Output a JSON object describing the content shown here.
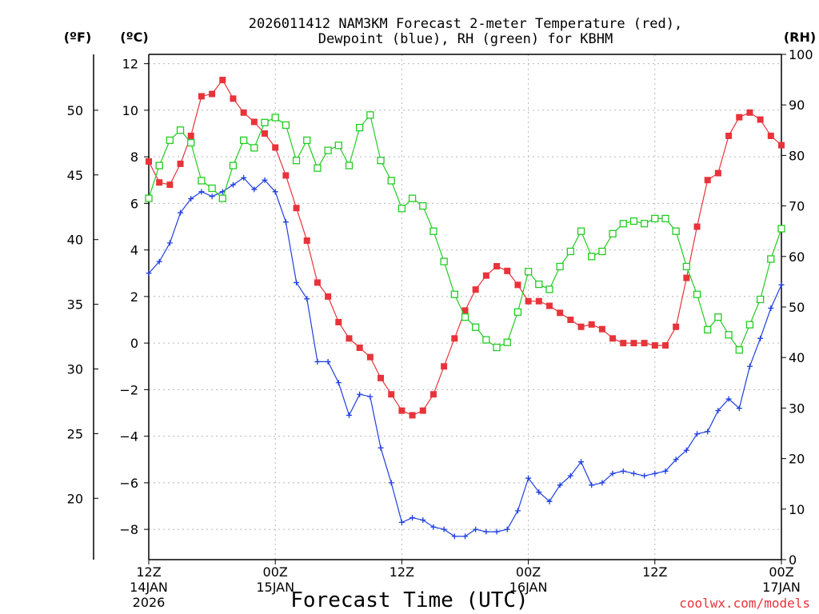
{
  "chart_data": {
    "type": "line",
    "title_lines": [
      "2026011412 NAM3KM Forecast 2-meter Temperature (red),",
      "Dewpoint (blue), RH (green) for KBHM"
    ],
    "xlabel": "Forecast Time (UTC)",
    "credit": "coolwx.com/models",
    "units": {
      "fahrenheit": "(ºF)",
      "celsius": "(ºC)",
      "rh": "(RH)"
    },
    "x_range_hours": [
      0,
      60
    ],
    "x_ticks": [
      {
        "hour": 0,
        "lines": [
          "12Z",
          "14JAN",
          "2026"
        ]
      },
      {
        "hour": 12,
        "lines": [
          "00Z",
          "15JAN"
        ]
      },
      {
        "hour": 24,
        "lines": [
          "12Z"
        ]
      },
      {
        "hour": 36,
        "lines": [
          "00Z",
          "16JAN"
        ]
      },
      {
        "hour": 48,
        "lines": [
          "12Z"
        ]
      },
      {
        "hour": 60,
        "lines": [
          "00Z",
          "17JAN"
        ]
      }
    ],
    "y_celsius": {
      "range": [
        -9.3,
        12.4
      ],
      "ticks": [
        12,
        10,
        8,
        6,
        4,
        2,
        0,
        -2,
        -4,
        -6,
        -8
      ]
    },
    "y_fahrenheit": {
      "ticks": [
        50,
        45,
        40,
        35,
        30,
        25,
        20
      ]
    },
    "y_rh": {
      "range": [
        0,
        100
      ],
      "ticks": [
        100,
        90,
        80,
        70,
        60,
        50,
        40,
        30,
        20,
        10,
        0
      ]
    },
    "series": [
      {
        "name": "Temperature",
        "unit": "C",
        "color": "#e8333a",
        "marker": "filled-square",
        "values": [
          7.8,
          6.9,
          6.8,
          7.7,
          8.9,
          10.6,
          10.7,
          11.3,
          10.5,
          9.9,
          9.5,
          9.0,
          8.4,
          7.2,
          5.8,
          4.4,
          2.6,
          2.0,
          0.9,
          0.2,
          -0.2,
          -0.6,
          -1.5,
          -2.2,
          -2.9,
          -3.1,
          -2.9,
          -2.2,
          -1.0,
          0.2,
          1.4,
          2.3,
          2.9,
          3.3,
          3.1,
          2.5,
          1.8,
          1.8,
          1.6,
          1.3,
          1.0,
          0.7,
          0.8,
          0.6,
          0.2,
          0.0,
          0.0,
          0.0,
          -0.1,
          -0.1,
          0.7,
          2.8,
          5.0,
          7.0,
          7.3,
          8.9,
          9.7,
          9.9,
          9.6,
          8.9,
          8.5
        ]
      },
      {
        "name": "Dewpoint",
        "unit": "C",
        "color": "#1f3fe0",
        "marker": "plus",
        "values": [
          3.0,
          3.5,
          4.3,
          5.6,
          6.2,
          6.5,
          6.3,
          6.5,
          6.8,
          7.1,
          6.6,
          7.0,
          6.5,
          5.2,
          2.6,
          1.9,
          -0.8,
          -0.8,
          -1.7,
          -3.1,
          -2.2,
          -2.3,
          -4.5,
          -6.0,
          -7.7,
          -7.5,
          -7.6,
          -7.9,
          -8.0,
          -8.3,
          -8.3,
          -8.0,
          -8.1,
          -8.1,
          -8.0,
          -7.2,
          -5.8,
          -6.4,
          -6.8,
          -6.1,
          -5.7,
          -5.1,
          -6.1,
          -6.0,
          -5.6,
          -5.5,
          -5.6,
          -5.7,
          -5.6,
          -5.5,
          -5.0,
          -4.6,
          -3.9,
          -3.8,
          -2.9,
          -2.4,
          -2.8,
          -1.0,
          0.2,
          1.5,
          2.5
        ]
      },
      {
        "name": "RH",
        "unit": "%",
        "color": "#22cc22",
        "marker": "open-square",
        "values": [
          71.5,
          78.0,
          83.0,
          85.0,
          82.5,
          75.0,
          73.5,
          71.5,
          78.0,
          83.0,
          81.5,
          86.5,
          87.5,
          86.0,
          79.0,
          83.0,
          77.5,
          81.0,
          82.0,
          78.0,
          85.5,
          88.0,
          79.0,
          75.0,
          69.5,
          71.5,
          70.0,
          65.0,
          59.0,
          52.5,
          48.0,
          46.0,
          43.5,
          42.0,
          43.0,
          49.0,
          57.0,
          54.5,
          53.5,
          58.0,
          61.0,
          65.0,
          60.0,
          61.0,
          64.5,
          66.5,
          67.0,
          66.5,
          67.5,
          67.5,
          65.0,
          58.0,
          52.5,
          45.5,
          48.0,
          44.5,
          41.5,
          46.5,
          51.5,
          59.5,
          65.5
        ]
      }
    ]
  }
}
